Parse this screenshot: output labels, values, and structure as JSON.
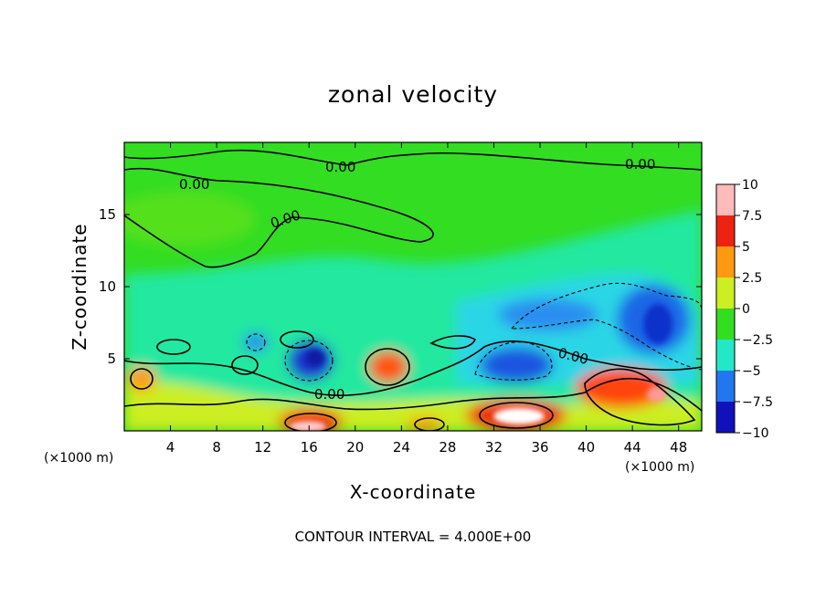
{
  "chart_data": {
    "type": "heatmap",
    "title": "zonal velocity",
    "xlabel": "X-coordinate",
    "ylabel": "Z-coordinate",
    "x_unit": "(×1000 m)",
    "z_unit": "(×1000 m)",
    "x_ticks": [
      4,
      8,
      12,
      16,
      20,
      24,
      28,
      32,
      36,
      40,
      44,
      48
    ],
    "z_ticks": [
      5,
      10,
      15
    ],
    "xlim": [
      0,
      50
    ],
    "zlim": [
      0,
      20
    ],
    "grid": false,
    "colorbar": {
      "ticks": [
        "10",
        "7.5",
        "5",
        "2.5",
        "0",
        "−2.5",
        "−5",
        "−7.5",
        "−10"
      ],
      "range": [
        -10,
        10
      ]
    },
    "contour_labels": [
      "0.00",
      "0.00",
      "0.00",
      "0.00",
      "0.00",
      "0.00"
    ],
    "contour_interval_text": "CONTOUR INTERVAL = 4.000E+00",
    "features": [
      {
        "x": 4,
        "z": 15,
        "value": 0.5
      },
      {
        "x": 17,
        "z": 5,
        "value": -7
      },
      {
        "x": 22,
        "z": 4.5,
        "value": 6
      },
      {
        "x": 34,
        "z": 1,
        "value": 10
      },
      {
        "x": 16,
        "z": 0.5,
        "value": 9
      },
      {
        "x": 46,
        "z": 3,
        "value": 7
      },
      {
        "x": 45,
        "z": 8,
        "value": -6
      },
      {
        "x": 34,
        "z": 5,
        "value": -5
      },
      {
        "x": 11,
        "z": 6.5,
        "value": -4
      }
    ]
  }
}
